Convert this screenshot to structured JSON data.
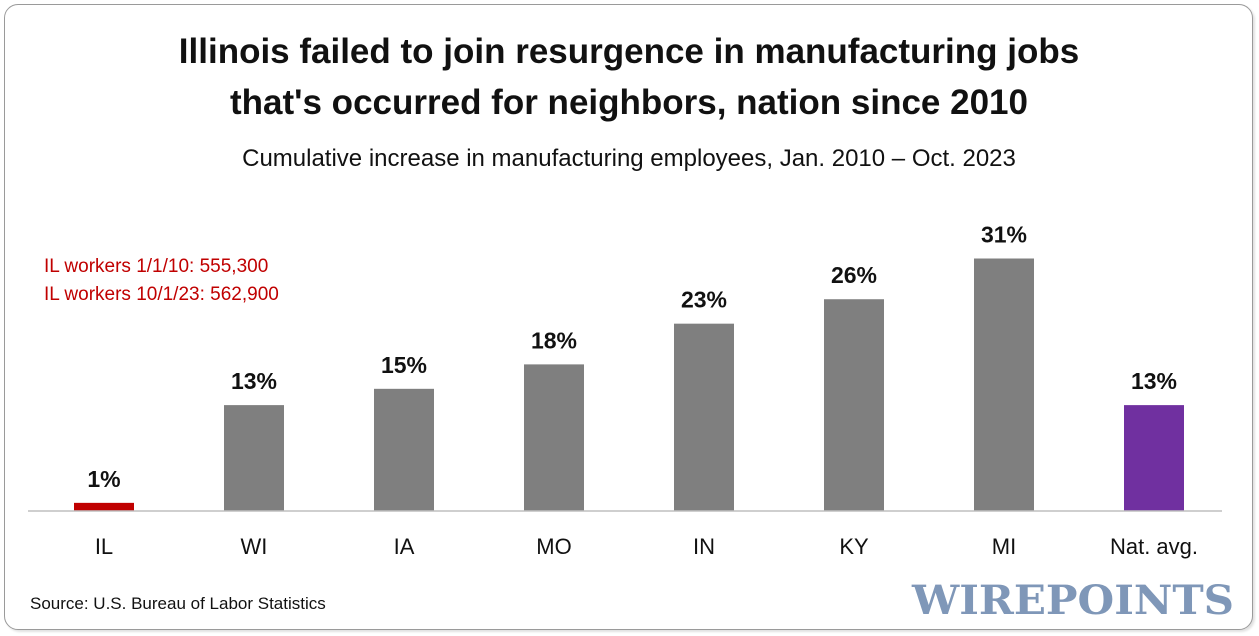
{
  "chart_data": {
    "type": "bar",
    "title_line1": "Illinois failed to join resurgence in manufacturing jobs",
    "title_line2": "that's occurred for neighbors, nation since 2010",
    "subtitle": "Cumulative increase in manufacturing employees, Jan. 2010 – Oct. 2023",
    "categories": [
      "IL",
      "WI",
      "IA",
      "MO",
      "IN",
      "KY",
      "MI",
      "Nat. avg."
    ],
    "values": [
      1,
      13,
      15,
      18,
      23,
      26,
      31,
      13
    ],
    "value_labels": [
      "1%",
      "13%",
      "15%",
      "18%",
      "23%",
      "26%",
      "31%",
      "13%"
    ],
    "colors": [
      "#c00000",
      "#7f7f7f",
      "#7f7f7f",
      "#7f7f7f",
      "#7f7f7f",
      "#7f7f7f",
      "#7f7f7f",
      "#7030a0"
    ],
    "xlabel": "",
    "ylabel": "",
    "ylim": [
      0,
      35
    ],
    "grid": false,
    "annotations": [
      "IL workers 1/1/10: 555,300",
      "IL workers 10/1/23: 562,900"
    ],
    "annotation_color": "#c00000"
  },
  "footer": {
    "source": "Source: U.S. Bureau of Labor Statistics",
    "brand": "WIREPOINTS"
  }
}
